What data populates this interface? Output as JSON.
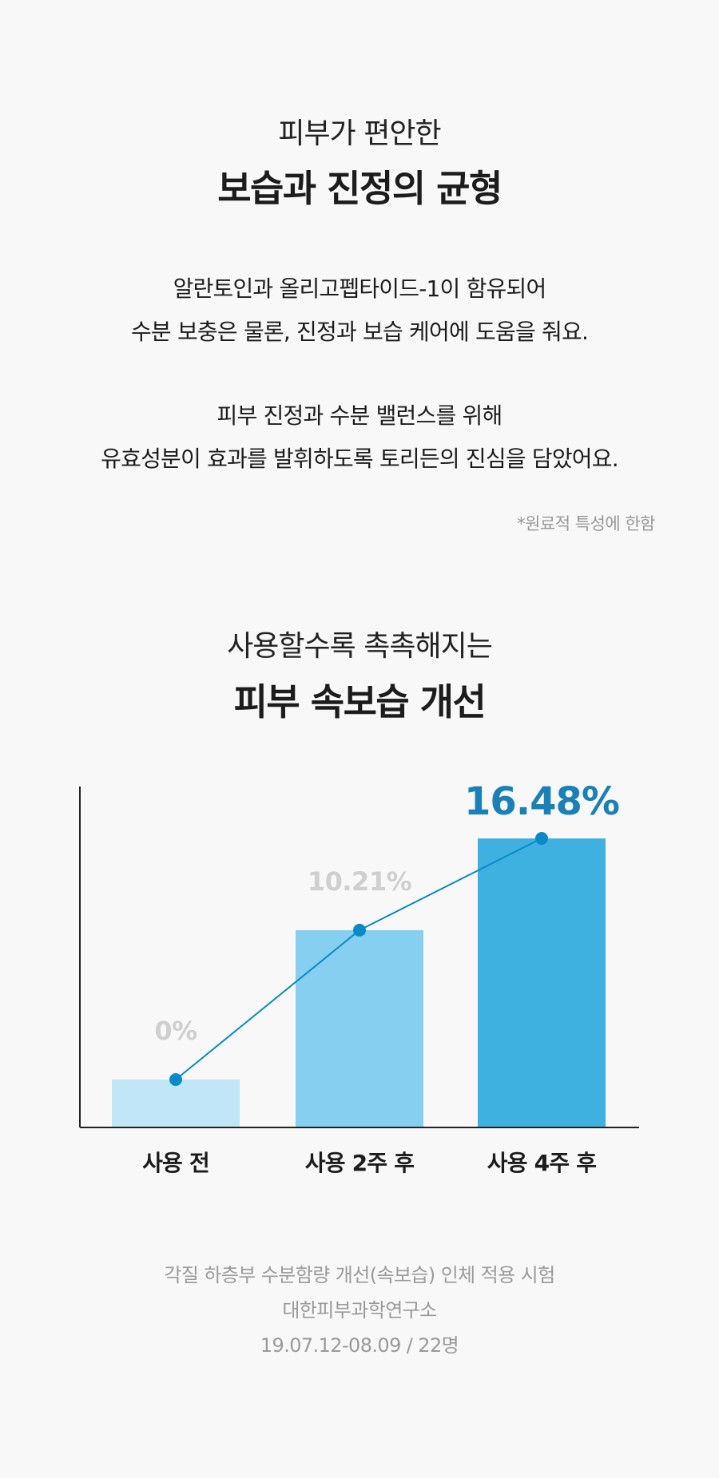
{
  "section1": {
    "subtitle": "피부가 편안한",
    "title": "보습과 진정의 균형",
    "paragraph1": [
      "알란토인과 올리고펩타이드-1이 함유되어",
      "수분 보충은 물론, 진정과 보습 케어에 도움을 줘요."
    ],
    "paragraph2": [
      "피부 진정과 수분 밸런스를 위해",
      "유효성분이 효과를 발휘하도록 토리든의 진심을 담았어요."
    ],
    "note": "*원료적 특성에 한함"
  },
  "section2": {
    "subtitle": "사용할수록 촉촉해지는",
    "title": "피부 속보습 개선"
  },
  "chart_data": {
    "type": "bar",
    "categories": [
      "사용 전",
      "사용 2주 후",
      "사용 4주 후"
    ],
    "values": [
      0,
      10.21,
      16.48
    ],
    "value_labels": [
      "0%",
      "10.21%",
      "16.48%"
    ],
    "unit": "%",
    "overlay_line": true,
    "bar_colors": [
      "#c0e6f8",
      "#86cff0",
      "#3fb1e0"
    ],
    "line_color": "#0a8ac8",
    "label_colors": [
      "#cfcfcf",
      "#cfcfcf",
      "#1a80b8"
    ],
    "highlight_last": true
  },
  "footer": {
    "lines": [
      "각질 하층부 수분함량 개선(속보습) 인체 적용 시험",
      "대한피부과학연구소",
      "19.07.12-08.09 / 22명"
    ]
  }
}
